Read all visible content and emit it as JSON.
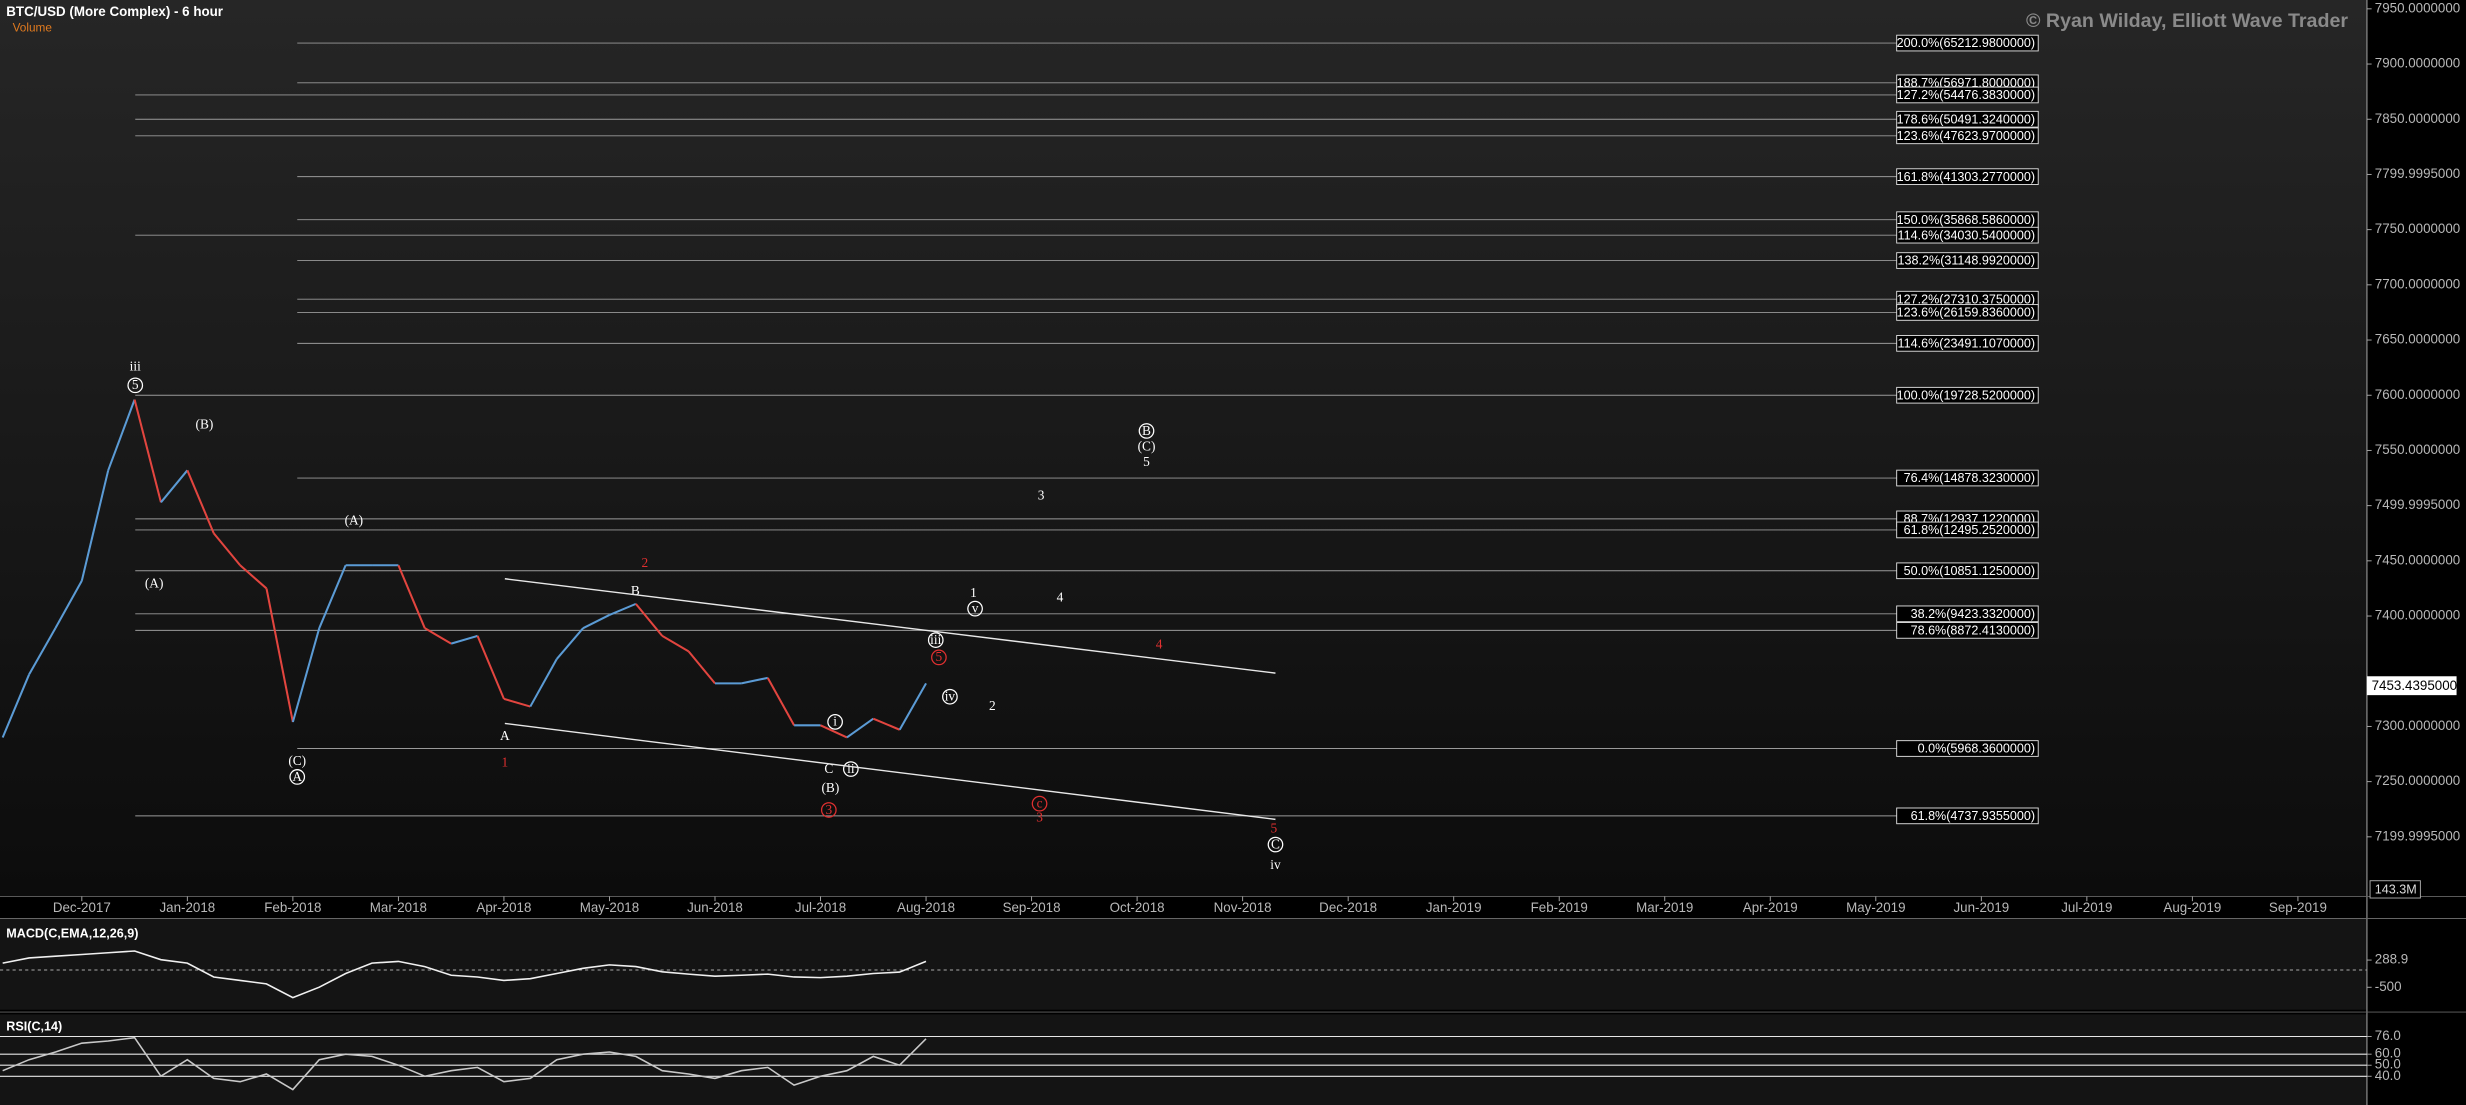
{
  "chart_data": [
    {
      "type": "line",
      "title": "BTC/USD (More Complex) - 6 hour",
      "volume_label": "Volume",
      "watermark": "© Ryan Wilday, Elliott Wave Trader",
      "volume_axis_label": "143.3M",
      "last_price_label": "7453.4395000",
      "up_color": "#5b9bd5",
      "down_color": "#e2453f",
      "categories": [
        null,
        null,
        null,
        "Dec-2017",
        null,
        null,
        null,
        "Jan-2018",
        null,
        null,
        null,
        "Feb-2018",
        null,
        null,
        null,
        "Mar-2018",
        null,
        null,
        null,
        "Apr-2018",
        null,
        null,
        null,
        "May-2018",
        null,
        null,
        null,
        "Jun-2018",
        null,
        null,
        null,
        "Jul-2018",
        null,
        null,
        null,
        "Aug-2018",
        null,
        null,
        null,
        "Sep-2018",
        null,
        null,
        null,
        "Oct-2018",
        null,
        null,
        null,
        "Nov-2018",
        null,
        null,
        null,
        "Dec-2018",
        null,
        null,
        null,
        "Jan-2019",
        null,
        null,
        null,
        "Feb-2019",
        null,
        null,
        null,
        "Mar-2019",
        null,
        null,
        null,
        "Apr-2019",
        null,
        null,
        null,
        "May-2019",
        null,
        null,
        null,
        "Jun-2019",
        null,
        null,
        null,
        "Jul-2019",
        null,
        null,
        null,
        "Aug-2019",
        null,
        null,
        null,
        "Sep-2019"
      ],
      "values": [
        7290,
        7347,
        7389,
        7432,
        7532,
        7596,
        7503,
        7532,
        7475,
        7446,
        7425,
        7304,
        7389,
        7446,
        7446,
        7446,
        7389,
        7375,
        7382,
        7325,
        7318,
        7361,
        7389,
        7401,
        7411,
        7382,
        7368,
        7339,
        7339,
        7344,
        7301,
        7301,
        7290,
        7307,
        7297,
        7339,
        null,
        null,
        null,
        null,
        null,
        null,
        null,
        null,
        null,
        null,
        null,
        null,
        null,
        null,
        null,
        null,
        null,
        null,
        null,
        null,
        null,
        null,
        null,
        null,
        null,
        null,
        null,
        null,
        null,
        null,
        null,
        null,
        null,
        null,
        null,
        null,
        null,
        null,
        null,
        null,
        null,
        null,
        null,
        null,
        null,
        null,
        null,
        null,
        null,
        null,
        null,
        null
      ],
      "ylim": [
        7146,
        7958
      ],
      "yticks": [
        {
          "value": 7950,
          "label": "7950.0000000"
        },
        {
          "value": 7900,
          "label": "7900.0000000"
        },
        {
          "value": 7850,
          "label": "7850.0000000"
        },
        {
          "value": 7800,
          "label": "7799.9995000"
        },
        {
          "value": 7750,
          "label": "7750.0000000"
        },
        {
          "value": 7700,
          "label": "7700.0000000"
        },
        {
          "value": 7650,
          "label": "7650.0000000"
        },
        {
          "value": 7600,
          "label": "7600.0000000"
        },
        {
          "value": 7550,
          "label": "7550.0000000"
        },
        {
          "value": 7500,
          "label": "7499.9995000"
        },
        {
          "value": 7450,
          "label": "7450.0000000"
        },
        {
          "value": 7400,
          "label": "7400.0000000"
        },
        {
          "value": 7300,
          "label": "7300.0000000"
        },
        {
          "value": 7250,
          "label": "7250.0000000"
        },
        {
          "value": 7200,
          "label": "7199.9995000"
        }
      ],
      "fib_levels": [
        {
          "value": 7919,
          "label": "200.0%(65212.9800000)"
        },
        {
          "value": 7883,
          "label": "188.7%(56971.8000000)"
        },
        {
          "value": 7872,
          "label": "127.2%(54476.3830000)"
        },
        {
          "value": 7850,
          "label": "178.6%(50491.3240000)"
        },
        {
          "value": 7835,
          "label": "123.6%(47623.9700000)"
        },
        {
          "value": 7798,
          "label": "161.8%(41303.2770000)"
        },
        {
          "value": 7759,
          "label": "150.0%(35868.5860000)"
        },
        {
          "value": 7745,
          "label": "114.6%(34030.5400000)"
        },
        {
          "value": 7722,
          "label": "138.2%(31148.9920000)"
        },
        {
          "value": 7687,
          "label": "127.2%(27310.3750000)"
        },
        {
          "value": 7675,
          "label": "123.6%(26159.8360000)"
        },
        {
          "value": 7647,
          "label": "114.6%(23491.1070000)"
        },
        {
          "value": 7600,
          "label": "100.0%(19728.5200000)"
        },
        {
          "value": 7525,
          "label": "76.4%(14878.3230000)"
        },
        {
          "value": 7488,
          "label": "88.7%(12937.1220000)"
        },
        {
          "value": 7478,
          "label": "61.8%(12495.2520000)"
        },
        {
          "value": 7441,
          "label": "50.0%(10851.1250000)"
        },
        {
          "value": 7402,
          "label": "38.2%(9423.3320000)"
        },
        {
          "value": 7387,
          "label": "78.6%(8872.4130000)"
        },
        {
          "value": 7280,
          "label": "0.0%(5968.3600000)"
        },
        {
          "value": 7219,
          "label": "61.8%(4737.9355000)"
        }
      ],
      "annotations": [
        {
          "text": "iii",
          "color": "#ffffff",
          "circled": false
        },
        {
          "text": "5",
          "color": "#ffffff",
          "circled": true
        },
        {
          "text": "(B)",
          "color": "#ffffff",
          "circled": false
        },
        {
          "text": "(A)",
          "color": "#ffffff",
          "circled": false
        },
        {
          "text": "(A)",
          "color": "#ffffff",
          "circled": false
        },
        {
          "text": "(C)",
          "color": "#ffffff",
          "circled": false
        },
        {
          "text": "A",
          "color": "#ffffff",
          "circled": true
        },
        {
          "text": "A",
          "color": "#ffffff",
          "circled": false
        },
        {
          "text": "1",
          "color": "#e03030",
          "circled": false
        },
        {
          "text": "B",
          "color": "#ffffff",
          "circled": false
        },
        {
          "text": "2",
          "color": "#e03030",
          "circled": false
        },
        {
          "text": "(B)",
          "color": "#ffffff",
          "circled": false
        },
        {
          "text": "C",
          "color": "#ffffff",
          "circled": false
        },
        {
          "text": "i",
          "color": "#ffffff",
          "circled": true
        },
        {
          "text": "ii",
          "color": "#ffffff",
          "circled": true
        },
        {
          "text": "3",
          "color": "#e03030",
          "circled": true
        },
        {
          "text": "iii",
          "color": "#ffffff",
          "circled": true
        },
        {
          "text": "5",
          "color": "#e03030",
          "circled": true
        },
        {
          "text": "iv",
          "color": "#ffffff",
          "circled": true
        },
        {
          "text": "2",
          "color": "#ffffff",
          "circled": false
        },
        {
          "text": "v",
          "color": "#ffffff",
          "circled": true
        },
        {
          "text": "1",
          "color": "#ffffff",
          "circled": false
        },
        {
          "text": "4",
          "color": "#ffffff",
          "circled": false
        },
        {
          "text": "3",
          "color": "#ffffff",
          "circled": false
        },
        {
          "text": "B",
          "color": "#ffffff",
          "circled": true
        },
        {
          "text": "(C)",
          "color": "#ffffff",
          "circled": false
        },
        {
          "text": "5",
          "color": "#ffffff",
          "circled": false
        },
        {
          "text": "4",
          "color": "#e03030",
          "circled": false
        },
        {
          "text": "c",
          "color": "#e03030",
          "circled": true
        },
        {
          "text": "3",
          "color": "#e03030",
          "circled": false
        },
        {
          "text": "5",
          "color": "#e03030",
          "circled": false
        },
        {
          "text": "C",
          "color": "#ffffff",
          "circled": true
        },
        {
          "text": "iv",
          "color": "#ffffff",
          "circled": false
        }
      ]
    },
    {
      "type": "line",
      "title": "MACD(C,EMA,12,26,9)",
      "color": "#f0f0f0",
      "values": [
        200,
        350,
        400,
        450,
        500,
        550,
        300,
        200,
        -200,
        -300,
        -400,
        -800,
        -500,
        -100,
        200,
        250,
        100,
        -150,
        -200,
        -300,
        -250,
        -100,
        50,
        150,
        100,
        -50,
        -120,
        -180,
        -150,
        -120,
        -200,
        -220,
        -180,
        -100,
        -60,
        250,
        null,
        null,
        null,
        null,
        null,
        null,
        null,
        null,
        null,
        null,
        null,
        null,
        null,
        null,
        null,
        null,
        null,
        null,
        null,
        null,
        null,
        null,
        null,
        null,
        null,
        null,
        null,
        null,
        null,
        null,
        null,
        null,
        null,
        null,
        null,
        null,
        null,
        null,
        null,
        null,
        null,
        null,
        null,
        null,
        null,
        null,
        null,
        null,
        null,
        null,
        null,
        null
      ],
      "ylim": [
        -1150,
        1495
      ],
      "yticks": [
        288.9,
        -500
      ]
    },
    {
      "type": "line",
      "title": "RSI(C,14)",
      "color": "#c8c8c8",
      "values": [
        45,
        55,
        62,
        70,
        72,
        75,
        40,
        55,
        38,
        35,
        42,
        28,
        55,
        60,
        58,
        50,
        40,
        45,
        48,
        35,
        38,
        55,
        60,
        62,
        58,
        45,
        42,
        38,
        45,
        48,
        32,
        40,
        45,
        58,
        50,
        74,
        null,
        null,
        null,
        null,
        null,
        null,
        null,
        null,
        null,
        null,
        null,
        null,
        null,
        null,
        null,
        null,
        null,
        null,
        null,
        null,
        null,
        null,
        null,
        null,
        null,
        null,
        null,
        null,
        null,
        null,
        null,
        null,
        null,
        null,
        null,
        null,
        null,
        null,
        null,
        null,
        null,
        null,
        null,
        null,
        null,
        null,
        null,
        null,
        null,
        null,
        null,
        null
      ],
      "ylim": [
        14,
        96
      ],
      "yticks": [
        {
          "value": 76,
          "label": "76.0"
        },
        {
          "value": 60,
          "label": "60.0"
        },
        {
          "value": 50,
          "label": "50.0"
        },
        {
          "value": 40,
          "label": "40.0"
        }
      ]
    }
  ]
}
